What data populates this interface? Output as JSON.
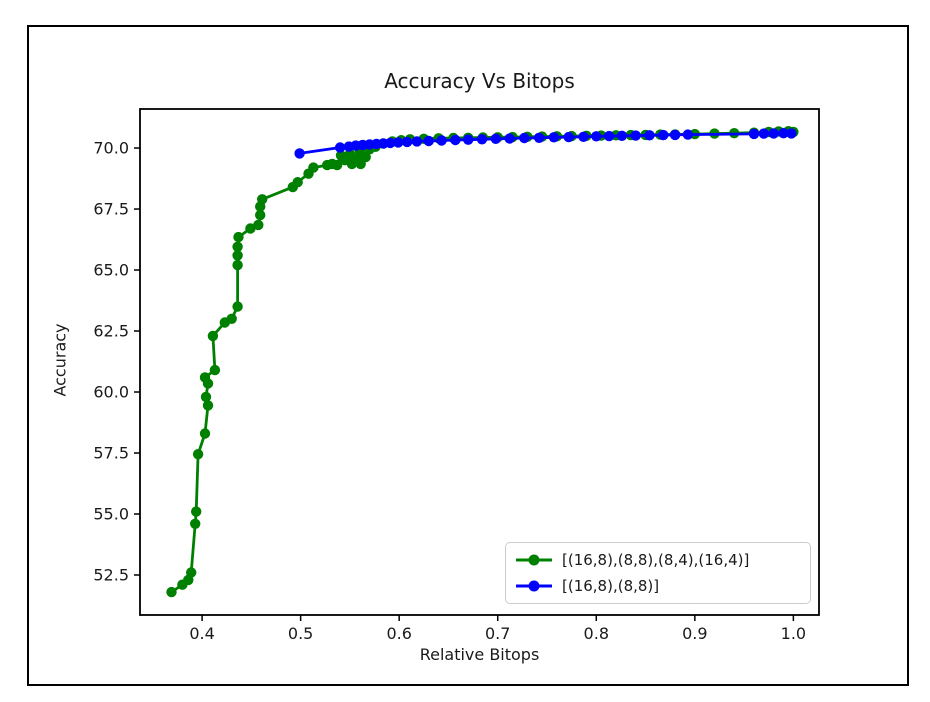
{
  "window": {
    "background": "#ffffff",
    "frame_color": "#000000"
  },
  "chart_data": {
    "type": "line",
    "title": "Accuracy Vs Bitops",
    "xlabel": "Relative Bitops",
    "ylabel": "Accuracy",
    "grid": false,
    "legend_position": "lower right",
    "xlim": [
      0.337,
      1.026
    ],
    "ylim": [
      50.86,
      71.6
    ],
    "xticks": [
      0.4,
      0.5,
      0.6,
      0.7,
      0.8,
      0.9,
      1.0
    ],
    "xtick_labels": [
      "0.4",
      "0.5",
      "0.6",
      "0.7",
      "0.8",
      "0.9",
      "1.0"
    ],
    "yticks": [
      52.5,
      55.0,
      57.5,
      60.0,
      62.5,
      65.0,
      67.5,
      70.0
    ],
    "ytick_labels": [
      "52.5",
      "55.0",
      "57.5",
      "60.0",
      "62.5",
      "65.0",
      "67.5",
      "70.0"
    ],
    "axis_color": "#000000",
    "series": [
      {
        "name": "[(16,8),(8,8),(8,4),(16,4)]",
        "color": "#008000",
        "marker": "circle",
        "points": [
          [
            0.369,
            51.8
          ],
          [
            0.38,
            52.1
          ],
          [
            0.386,
            52.3
          ],
          [
            0.389,
            52.6
          ],
          [
            0.393,
            54.6
          ],
          [
            0.394,
            55.1
          ],
          [
            0.396,
            57.45
          ],
          [
            0.403,
            58.3
          ],
          [
            0.406,
            59.45
          ],
          [
            0.404,
            59.8
          ],
          [
            0.406,
            60.35
          ],
          [
            0.403,
            60.6
          ],
          [
            0.413,
            60.9
          ],
          [
            0.411,
            62.3
          ],
          [
            0.423,
            62.85
          ],
          [
            0.43,
            63.0
          ],
          [
            0.436,
            63.5
          ],
          [
            0.436,
            65.2
          ],
          [
            0.436,
            65.6
          ],
          [
            0.436,
            65.95
          ],
          [
            0.437,
            66.35
          ],
          [
            0.449,
            66.7
          ],
          [
            0.457,
            66.85
          ],
          [
            0.459,
            67.25
          ],
          [
            0.459,
            67.6
          ],
          [
            0.461,
            67.9
          ],
          [
            0.492,
            68.4
          ],
          [
            0.497,
            68.6
          ],
          [
            0.508,
            68.95
          ],
          [
            0.513,
            69.2
          ],
          [
            0.527,
            69.3
          ],
          [
            0.532,
            69.35
          ],
          [
            0.537,
            69.3
          ],
          [
            0.541,
            69.7
          ],
          [
            0.545,
            69.5
          ],
          [
            0.55,
            69.75
          ],
          [
            0.552,
            69.35
          ],
          [
            0.556,
            69.55
          ],
          [
            0.56,
            69.85
          ],
          [
            0.561,
            69.35
          ],
          [
            0.566,
            69.63
          ],
          [
            0.57,
            69.95
          ],
          [
            0.576,
            70.05
          ],
          [
            0.584,
            70.18
          ],
          [
            0.593,
            70.27
          ],
          [
            0.602,
            70.32
          ],
          [
            0.611,
            70.36
          ],
          [
            0.625,
            70.38
          ],
          [
            0.64,
            70.4
          ],
          [
            0.655,
            70.41
          ],
          [
            0.67,
            70.42
          ],
          [
            0.685,
            70.43
          ],
          [
            0.7,
            70.44
          ],
          [
            0.715,
            70.45
          ],
          [
            0.73,
            70.46
          ],
          [
            0.745,
            70.47
          ],
          [
            0.76,
            70.48
          ],
          [
            0.775,
            70.49
          ],
          [
            0.79,
            70.5
          ],
          [
            0.805,
            70.51
          ],
          [
            0.82,
            70.52
          ],
          [
            0.835,
            70.53
          ],
          [
            0.85,
            70.54
          ],
          [
            0.865,
            70.55
          ],
          [
            0.88,
            70.56
          ],
          [
            0.9,
            70.57
          ],
          [
            0.92,
            70.59
          ],
          [
            0.94,
            70.61
          ],
          [
            0.96,
            70.63
          ],
          [
            0.975,
            70.66
          ],
          [
            0.985,
            70.68
          ],
          [
            0.995,
            70.69
          ],
          [
            1.0,
            70.66
          ]
        ]
      },
      {
        "name": "[(16,8),(8,8)]",
        "color": "#0000ff",
        "marker": "circle",
        "points": [
          [
            0.499,
            69.78
          ],
          [
            0.54,
            70.02
          ],
          [
            0.549,
            70.06
          ],
          [
            0.556,
            70.1
          ],
          [
            0.563,
            70.13
          ],
          [
            0.57,
            70.15
          ],
          [
            0.577,
            70.17
          ],
          [
            0.584,
            70.19
          ],
          [
            0.591,
            70.21
          ],
          [
            0.599,
            70.23
          ],
          [
            0.608,
            70.25
          ],
          [
            0.618,
            70.27
          ],
          [
            0.63,
            70.29
          ],
          [
            0.643,
            70.31
          ],
          [
            0.657,
            70.33
          ],
          [
            0.67,
            70.34
          ],
          [
            0.684,
            70.36
          ],
          [
            0.698,
            70.38
          ],
          [
            0.712,
            70.39
          ],
          [
            0.727,
            70.41
          ],
          [
            0.742,
            70.42
          ],
          [
            0.757,
            70.44
          ],
          [
            0.772,
            70.45
          ],
          [
            0.787,
            70.46
          ],
          [
            0.8,
            70.48
          ],
          [
            0.813,
            70.49
          ],
          [
            0.826,
            70.5
          ],
          [
            0.84,
            70.51
          ],
          [
            0.854,
            70.52
          ],
          [
            0.868,
            70.53
          ],
          [
            0.88,
            70.54
          ],
          [
            0.893,
            70.55
          ],
          [
            0.96,
            70.58
          ],
          [
            0.97,
            70.59
          ],
          [
            0.98,
            70.6
          ],
          [
            0.99,
            70.61
          ],
          [
            0.998,
            70.6
          ]
        ]
      }
    ]
  }
}
